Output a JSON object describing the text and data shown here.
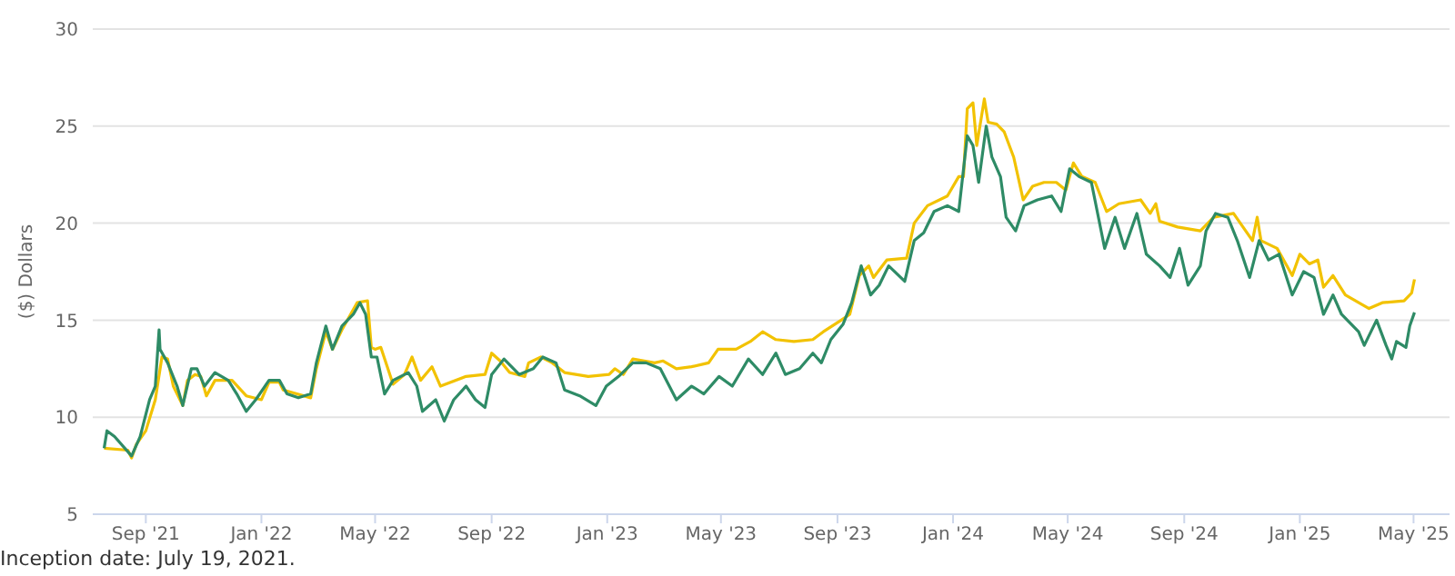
{
  "chart_data": {
    "type": "line",
    "ylabel": "($) Dollars",
    "annotations": [
      "Inception date: July 19, 2021."
    ],
    "ylim": [
      5,
      30
    ],
    "yticks": [
      5,
      10,
      15,
      20,
      25,
      30
    ],
    "xlim": [
      "2021-07-07",
      "2025-06-08"
    ],
    "xticks": [
      {
        "value": "2021-09-01",
        "label": "Sep '21"
      },
      {
        "value": "2022-01-01",
        "label": "Jan '22"
      },
      {
        "value": "2022-05-01",
        "label": "May '22"
      },
      {
        "value": "2022-09-01",
        "label": "Sep '22"
      },
      {
        "value": "2023-01-01",
        "label": "Jan '23"
      },
      {
        "value": "2023-05-01",
        "label": "May '23"
      },
      {
        "value": "2023-09-01",
        "label": "Sep '23"
      },
      {
        "value": "2024-01-01",
        "label": "Jan '24"
      },
      {
        "value": "2024-05-01",
        "label": "May '24"
      },
      {
        "value": "2024-09-01",
        "label": "Sep '24"
      },
      {
        "value": "2025-01-01",
        "label": "Jan '25"
      },
      {
        "value": "2025-05-01",
        "label": "May '25"
      }
    ],
    "grid": "y",
    "marker": "none",
    "line_style": "solid",
    "series": [
      {
        "color": "#f2c200",
        "x": [
          "2021-07-19",
          "2021-08-13",
          "2021-08-17",
          "2021-08-22",
          "2021-09-01",
          "2021-09-11",
          "2021-09-18",
          "2021-09-24",
          "2021-09-30",
          "2021-10-10",
          "2021-10-15",
          "2021-10-23",
          "2021-10-29",
          "2021-11-04",
          "2021-11-13",
          "2021-12-01",
          "2021-12-16",
          "2022-01-01",
          "2022-01-09",
          "2022-01-20",
          "2022-01-24",
          "2022-02-22",
          "2022-02-28",
          "2022-03-10",
          "2022-03-17",
          "2022-03-27",
          "2022-04-12",
          "2022-04-23",
          "2022-04-27",
          "2022-05-01",
          "2022-05-07",
          "2022-05-20",
          "2022-06-01",
          "2022-06-09",
          "2022-06-18",
          "2022-06-30",
          "2022-07-09",
          "2022-08-05",
          "2022-08-25",
          "2022-09-01",
          "2022-09-10",
          "2022-09-20",
          "2022-10-06",
          "2022-10-10",
          "2022-10-23",
          "2022-11-04",
          "2022-11-17",
          "2022-12-12",
          "2023-01-03",
          "2023-01-09",
          "2023-01-18",
          "2023-01-28",
          "2023-02-20",
          "2023-03-01",
          "2023-03-15",
          "2023-03-31",
          "2023-04-18",
          "2023-04-28",
          "2023-05-17",
          "2023-06-01",
          "2023-06-14",
          "2023-06-28",
          "2023-07-17",
          "2023-08-06",
          "2023-08-17",
          "2023-09-05",
          "2023-09-14",
          "2023-09-24",
          "2023-10-04",
          "2023-10-09",
          "2023-10-23",
          "2023-11-13",
          "2023-11-21",
          "2023-12-05",
          "2023-12-26",
          "2024-01-07",
          "2024-01-12",
          "2024-01-16",
          "2024-01-22",
          "2024-01-26",
          "2024-02-03",
          "2024-02-07",
          "2024-02-16",
          "2024-02-24",
          "2024-03-05",
          "2024-03-15",
          "2024-03-25",
          "2024-04-06",
          "2024-04-19",
          "2024-04-29",
          "2024-05-07",
          "2024-05-16",
          "2024-05-30",
          "2024-06-11",
          "2024-06-24",
          "2024-07-17",
          "2024-07-27",
          "2024-08-02",
          "2024-08-06",
          "2024-08-25",
          "2024-09-18",
          "2024-10-02",
          "2024-10-23",
          "2024-11-02",
          "2024-11-12",
          "2024-11-17",
          "2024-11-21",
          "2024-12-08",
          "2024-12-24",
          "2025-01-01",
          "2025-01-11",
          "2025-01-20",
          "2025-01-26",
          "2025-02-05",
          "2025-02-18",
          "2025-03-15",
          "2025-03-29",
          "2025-04-21",
          "2025-04-29",
          "2025-05-02"
        ],
        "values": [
          8.4,
          8.3,
          7.9,
          8.6,
          9.3,
          10.9,
          13.1,
          13.0,
          11.6,
          10.6,
          11.9,
          12.2,
          12.1,
          11.1,
          11.9,
          11.9,
          11.1,
          10.9,
          11.8,
          11.8,
          11.4,
          11.0,
          12.5,
          14.4,
          13.5,
          14.5,
          15.9,
          16.0,
          13.6,
          13.5,
          13.6,
          11.7,
          12.2,
          13.1,
          11.9,
          12.6,
          11.6,
          12.1,
          12.2,
          13.3,
          12.9,
          12.3,
          12.1,
          12.8,
          13.1,
          12.8,
          12.3,
          12.1,
          12.2,
          12.5,
          12.2,
          13.0,
          12.8,
          12.9,
          12.5,
          12.6,
          12.8,
          13.5,
          13.5,
          13.9,
          14.4,
          14.0,
          13.9,
          14.0,
          14.4,
          15.0,
          15.3,
          17.3,
          17.8,
          17.2,
          18.1,
          18.2,
          20.0,
          20.9,
          21.4,
          22.4,
          22.4,
          25.9,
          26.2,
          24.0,
          26.4,
          25.2,
          25.1,
          24.7,
          23.4,
          21.2,
          21.9,
          22.1,
          22.1,
          21.7,
          23.1,
          22.4,
          22.1,
          20.6,
          21.0,
          21.2,
          20.5,
          21.0,
          20.1,
          19.8,
          19.6,
          20.3,
          20.5,
          19.8,
          19.1,
          20.3,
          19.1,
          18.7,
          17.3,
          18.4,
          17.9,
          18.1,
          16.7,
          17.3,
          16.3,
          15.6,
          15.9,
          16.0,
          16.4,
          17.1
        ]
      },
      {
        "color": "#2e8b66",
        "x": [
          "2021-07-19",
          "2021-07-22",
          "2021-07-30",
          "2021-08-17",
          "2021-08-26",
          "2021-09-05",
          "2021-09-11",
          "2021-09-15",
          "2021-09-16",
          "2021-09-24",
          "2021-10-04",
          "2021-10-10",
          "2021-10-19",
          "2021-10-25",
          "2021-11-02",
          "2021-11-13",
          "2021-11-27",
          "2021-12-06",
          "2021-12-16",
          "2021-12-26",
          "2022-01-09",
          "2022-01-20",
          "2022-01-28",
          "2022-02-09",
          "2022-02-22",
          "2022-02-28",
          "2022-03-10",
          "2022-03-17",
          "2022-03-27",
          "2022-04-08",
          "2022-04-15",
          "2022-04-21",
          "2022-04-27",
          "2022-05-03",
          "2022-05-11",
          "2022-05-20",
          "2022-06-05",
          "2022-06-14",
          "2022-06-20",
          "2022-07-04",
          "2022-07-13",
          "2022-07-23",
          "2022-08-05",
          "2022-08-15",
          "2022-08-25",
          "2022-09-01",
          "2022-09-14",
          "2022-09-30",
          "2022-10-15",
          "2022-10-25",
          "2022-11-08",
          "2022-11-17",
          "2022-12-03",
          "2022-12-20",
          "2022-12-31",
          "2023-01-13",
          "2023-01-28",
          "2023-02-11",
          "2023-02-26",
          "2023-03-15",
          "2023-03-31",
          "2023-04-13",
          "2023-04-29",
          "2023-05-13",
          "2023-05-30",
          "2023-06-14",
          "2023-06-28",
          "2023-07-08",
          "2023-07-23",
          "2023-08-06",
          "2023-08-15",
          "2023-08-25",
          "2023-09-07",
          "2023-09-16",
          "2023-09-26",
          "2023-10-06",
          "2023-10-15",
          "2023-10-25",
          "2023-11-11",
          "2023-11-21",
          "2023-12-01",
          "2023-12-12",
          "2023-12-26",
          "2024-01-07",
          "2024-01-16",
          "2024-01-22",
          "2024-01-28",
          "2024-02-05",
          "2024-02-11",
          "2024-02-20",
          "2024-02-26",
          "2024-03-07",
          "2024-03-16",
          "2024-03-30",
          "2024-04-14",
          "2024-04-24",
          "2024-05-03",
          "2024-05-13",
          "2024-05-26",
          "2024-06-09",
          "2024-06-20",
          "2024-06-30",
          "2024-07-13",
          "2024-07-23",
          "2024-08-06",
          "2024-08-17",
          "2024-08-27",
          "2024-09-05",
          "2024-09-18",
          "2024-09-24",
          "2024-10-04",
          "2024-10-17",
          "2024-10-27",
          "2024-11-09",
          "2024-11-19",
          "2024-11-29",
          "2024-12-10",
          "2024-12-24",
          "2025-01-05",
          "2025-01-16",
          "2025-01-26",
          "2025-02-05",
          "2025-02-14",
          "2025-03-04",
          "2025-03-10",
          "2025-03-23",
          "2025-04-02",
          "2025-04-08",
          "2025-04-13",
          "2025-04-23",
          "2025-04-27",
          "2025-05-02"
        ],
        "values": [
          8.4,
          9.3,
          9.0,
          8.0,
          9.0,
          10.9,
          11.6,
          14.5,
          13.5,
          12.8,
          11.6,
          10.6,
          12.5,
          12.5,
          11.6,
          12.3,
          11.9,
          11.2,
          10.3,
          10.9,
          11.9,
          11.9,
          11.2,
          11.0,
          11.2,
          12.8,
          14.7,
          13.5,
          14.7,
          15.3,
          15.9,
          15.3,
          13.1,
          13.1,
          11.2,
          11.9,
          12.3,
          11.6,
          10.3,
          10.9,
          9.8,
          10.9,
          11.6,
          10.9,
          10.5,
          12.2,
          13.0,
          12.2,
          12.5,
          13.1,
          12.8,
          11.4,
          11.1,
          10.6,
          11.6,
          12.1,
          12.8,
          12.8,
          12.5,
          10.9,
          11.6,
          11.2,
          12.1,
          11.6,
          13.0,
          12.2,
          13.3,
          12.2,
          12.5,
          13.3,
          12.8,
          14.0,
          14.8,
          15.9,
          17.8,
          16.3,
          16.8,
          17.8,
          17.0,
          19.1,
          19.5,
          20.6,
          20.9,
          20.6,
          24.5,
          24.0,
          22.1,
          25.0,
          23.4,
          22.4,
          20.3,
          19.6,
          20.9,
          21.2,
          21.4,
          20.6,
          22.8,
          22.4,
          22.1,
          18.7,
          20.3,
          18.7,
          20.5,
          18.4,
          17.8,
          17.2,
          18.7,
          16.8,
          17.8,
          19.6,
          20.5,
          20.3,
          19.1,
          17.2,
          19.1,
          18.1,
          18.4,
          16.3,
          17.5,
          17.2,
          15.3,
          16.3,
          15.3,
          14.4,
          13.7,
          15.0,
          13.7,
          13.0,
          13.9,
          13.6,
          14.7,
          15.4
        ]
      }
    ]
  }
}
